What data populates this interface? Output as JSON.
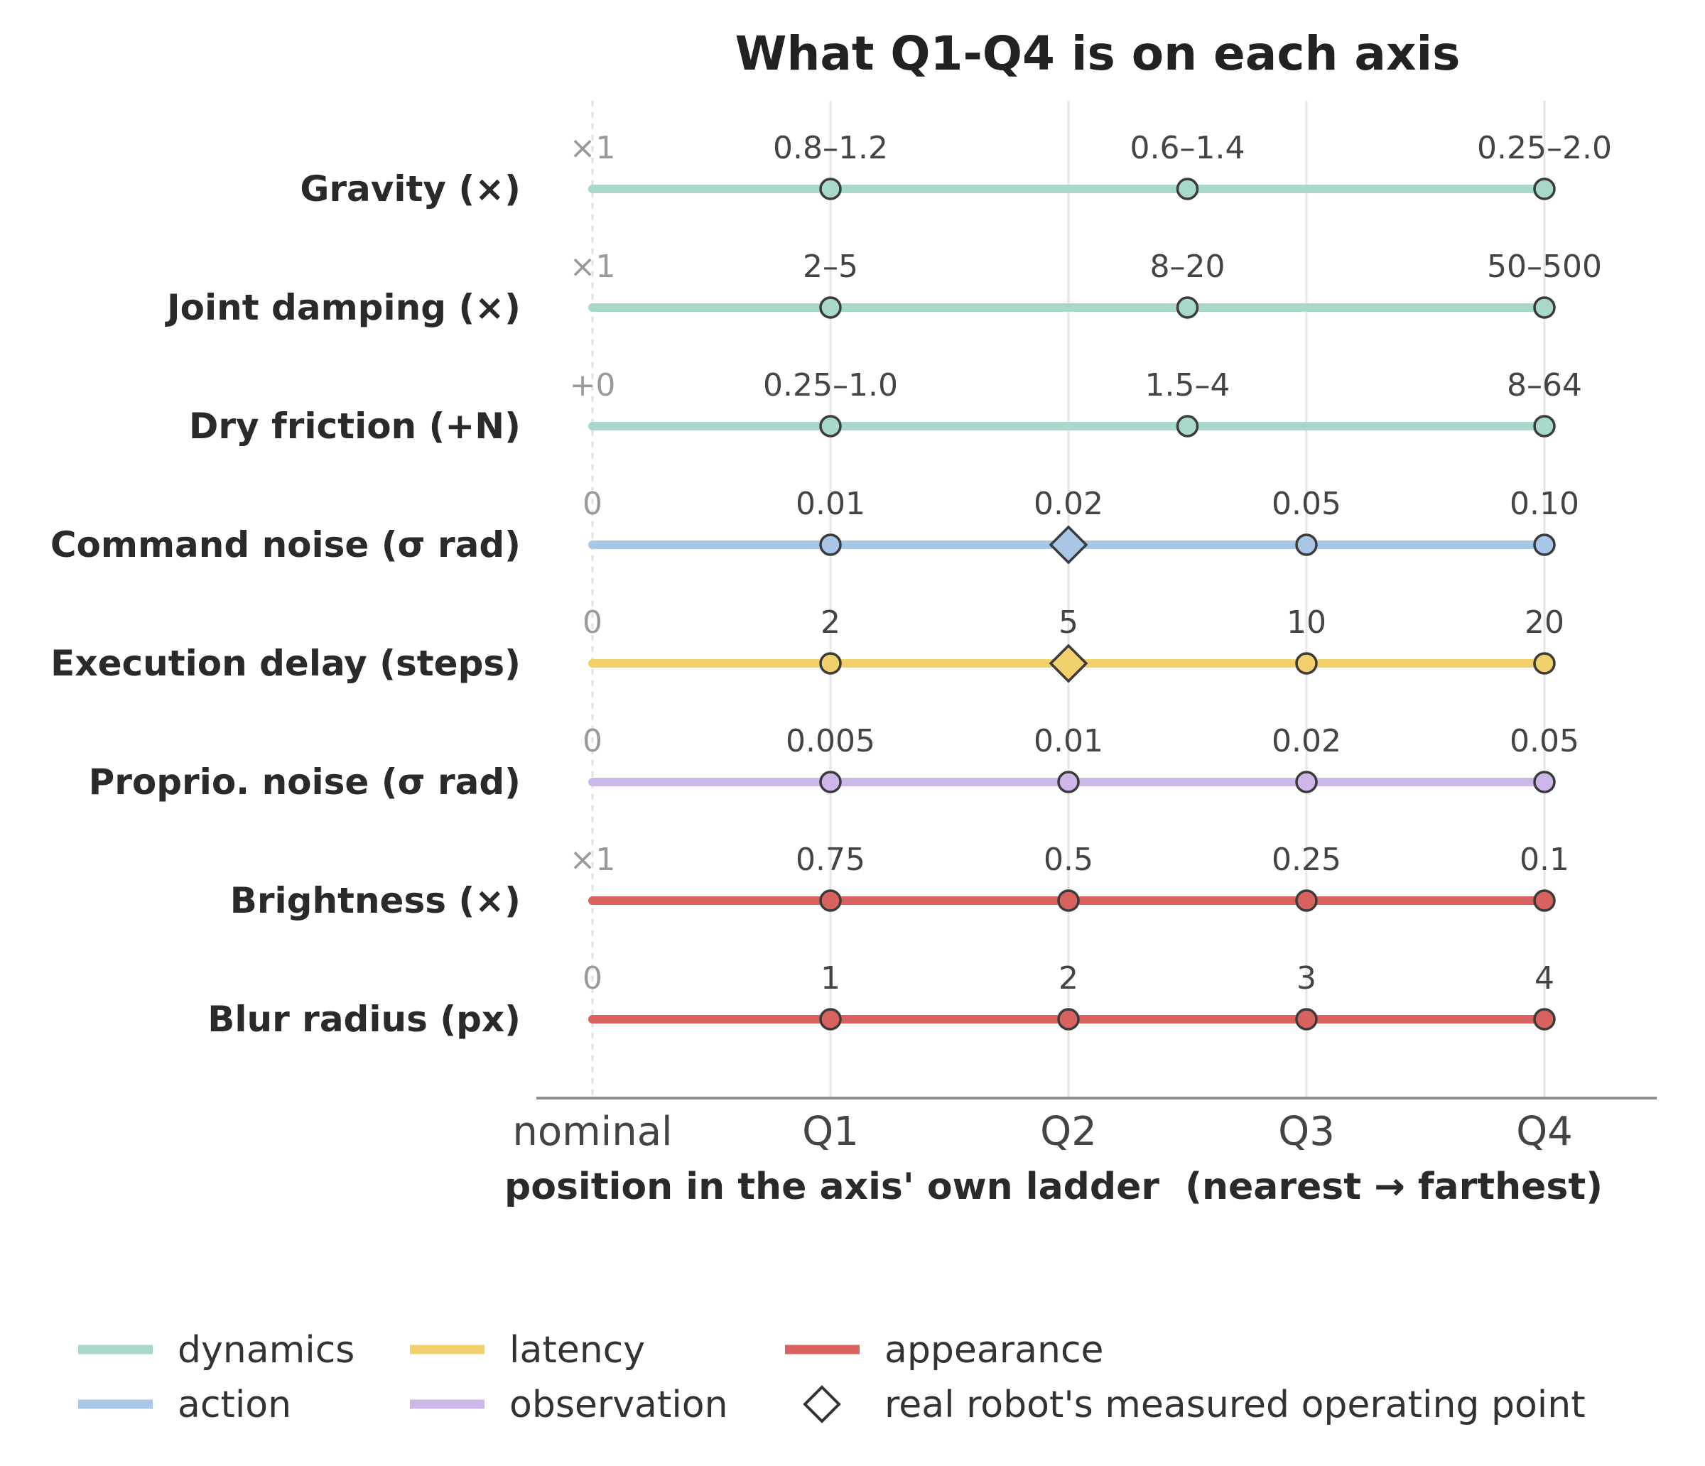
{
  "chart_data": {
    "type": "scatter",
    "title": "What Q1-Q4 is on each axis",
    "xlabel": "position in the axis' own ladder  (nearest → farthest)",
    "x_ticks": [
      "nominal",
      "Q1",
      "Q2",
      "Q3",
      "Q4"
    ],
    "grid": "vertical",
    "legend_position": "bottom",
    "colors": {
      "dynamics": "#a8d8cc",
      "action": "#a9c6e6",
      "latency": "#f2d06b",
      "observation": "#cdb6e8",
      "appearance": "#d9625e"
    },
    "legend": [
      {
        "key": "dynamics",
        "label": "dynamics",
        "kind": "line"
      },
      {
        "key": "action",
        "label": "action",
        "kind": "line"
      },
      {
        "key": "latency",
        "label": "latency",
        "kind": "line"
      },
      {
        "key": "observation",
        "label": "observation",
        "kind": "line"
      },
      {
        "key": "appearance",
        "label": "appearance",
        "kind": "line"
      },
      {
        "key": "operating_point",
        "label": "real robot's measured operating point",
        "kind": "diamond"
      }
    ],
    "series": [
      {
        "name": "Gravity (×)",
        "category": "dynamics",
        "points": [
          {
            "x": 0,
            "label": "×1"
          },
          {
            "x": 1,
            "label": "0.8–1.2"
          },
          {
            "x": 2.5,
            "label": "0.6–1.4"
          },
          {
            "x": 4,
            "label": "0.25–2.0"
          }
        ]
      },
      {
        "name": "Joint damping (×)",
        "category": "dynamics",
        "points": [
          {
            "x": 0,
            "label": "×1"
          },
          {
            "x": 1,
            "label": "2–5"
          },
          {
            "x": 2.5,
            "label": "8–20"
          },
          {
            "x": 4,
            "label": "50–500"
          }
        ]
      },
      {
        "name": "Dry friction (+N)",
        "category": "dynamics",
        "points": [
          {
            "x": 0,
            "label": "+0"
          },
          {
            "x": 1,
            "label": "0.25–1.0"
          },
          {
            "x": 2.5,
            "label": "1.5–4"
          },
          {
            "x": 4,
            "label": "8–64"
          }
        ]
      },
      {
        "name": "Command noise (σ rad)",
        "category": "action",
        "operating_point": 2,
        "points": [
          {
            "x": 0,
            "label": "0"
          },
          {
            "x": 1,
            "label": "0.01"
          },
          {
            "x": 2,
            "label": "0.02"
          },
          {
            "x": 3,
            "label": "0.05"
          },
          {
            "x": 4,
            "label": "0.10"
          }
        ]
      },
      {
        "name": "Execution delay (steps)",
        "category": "latency",
        "operating_point": 2,
        "points": [
          {
            "x": 0,
            "label": "0"
          },
          {
            "x": 1,
            "label": "2"
          },
          {
            "x": 2,
            "label": "5"
          },
          {
            "x": 3,
            "label": "10"
          },
          {
            "x": 4,
            "label": "20"
          }
        ]
      },
      {
        "name": "Proprio. noise (σ rad)",
        "category": "observation",
        "points": [
          {
            "x": 0,
            "label": "0"
          },
          {
            "x": 1,
            "label": "0.005"
          },
          {
            "x": 2,
            "label": "0.01"
          },
          {
            "x": 3,
            "label": "0.02"
          },
          {
            "x": 4,
            "label": "0.05"
          }
        ]
      },
      {
        "name": "Brightness (×)",
        "category": "appearance",
        "points": [
          {
            "x": 0,
            "label": "×1"
          },
          {
            "x": 1,
            "label": "0.75"
          },
          {
            "x": 2,
            "label": "0.5"
          },
          {
            "x": 3,
            "label": "0.25"
          },
          {
            "x": 4,
            "label": "0.1"
          }
        ]
      },
      {
        "name": "Blur radius (px)",
        "category": "appearance",
        "points": [
          {
            "x": 0,
            "label": "0"
          },
          {
            "x": 1,
            "label": "1"
          },
          {
            "x": 2,
            "label": "2"
          },
          {
            "x": 3,
            "label": "3"
          },
          {
            "x": 4,
            "label": "4"
          }
        ]
      }
    ]
  }
}
